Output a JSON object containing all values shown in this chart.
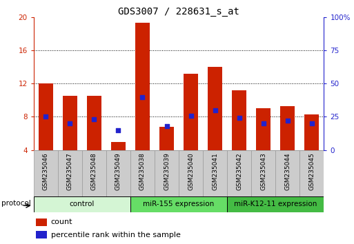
{
  "title": "GDS3007 / 228631_s_at",
  "categories": [
    "GSM235046",
    "GSM235047",
    "GSM235048",
    "GSM235049",
    "GSM235038",
    "GSM235039",
    "GSM235040",
    "GSM235041",
    "GSM235042",
    "GSM235043",
    "GSM235044",
    "GSM235045"
  ],
  "red_counts": [
    12.0,
    10.5,
    10.5,
    5.0,
    19.3,
    6.8,
    13.2,
    14.0,
    11.2,
    9.0,
    9.3,
    8.3
  ],
  "blue_percentiles": [
    25,
    20,
    23,
    15,
    40,
    18,
    26,
    30,
    24,
    20,
    22,
    20
  ],
  "ylim_left": [
    4,
    20
  ],
  "ylim_right": [
    0,
    100
  ],
  "yticks_left": [
    4,
    8,
    12,
    16,
    20
  ],
  "yticks_right": [
    0,
    25,
    50,
    75,
    100
  ],
  "ytick_labels_right": [
    "0",
    "25",
    "50",
    "75",
    "100%"
  ],
  "bar_color": "#cc2200",
  "blue_color": "#2222cc",
  "protocol_groups": [
    {
      "label": "control",
      "start": 0,
      "end": 3,
      "color": "#d4f5d4"
    },
    {
      "label": "miR-155 expression",
      "start": 4,
      "end": 7,
      "color": "#66dd66"
    },
    {
      "label": "miR-K12-11 expression",
      "start": 8,
      "end": 11,
      "color": "#44bb44"
    }
  ],
  "legend_items": [
    {
      "label": "count",
      "color": "#cc2200"
    },
    {
      "label": "percentile rank within the sample",
      "color": "#2222cc"
    }
  ],
  "bar_width": 0.6,
  "protocol_label": "protocol",
  "title_fontsize": 10,
  "tick_fontsize": 7.5,
  "label_fontsize": 6.5,
  "proto_fontsize": 7.5,
  "legend_fontsize": 8
}
